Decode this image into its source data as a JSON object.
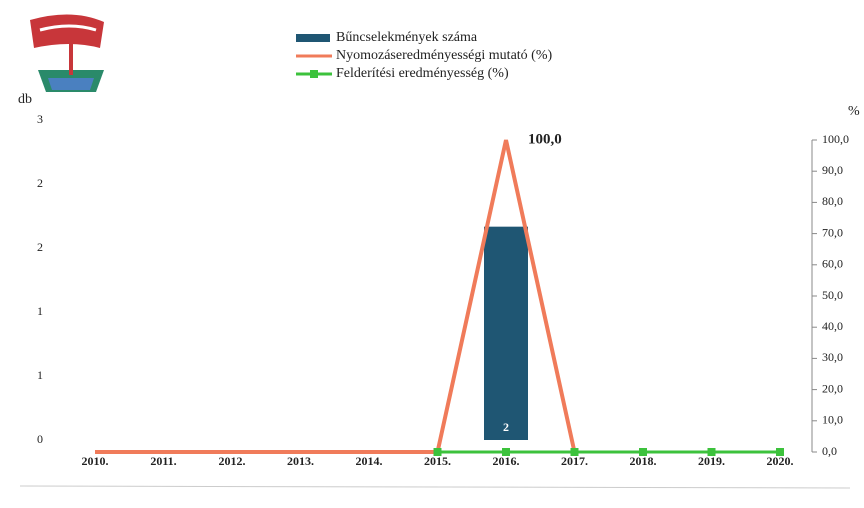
{
  "chart_data": {
    "type": "bar_line",
    "categories": [
      "2010.",
      "2011.",
      "2012.",
      "2013.",
      "2014.",
      "2015.",
      "2016.",
      "2017.",
      "2018.",
      "2019.",
      "2020."
    ],
    "ylabel": "db",
    "y2label": "%",
    "ylim": [
      0,
      3
    ],
    "yticks": [
      0,
      {
        "value": 0.6,
        "label": "1"
      },
      {
        "value": 1.2,
        "label": "1"
      },
      {
        "value": 1.8,
        "label": "2"
      },
      {
        "value": 2.4,
        "label": "2"
      },
      3
    ],
    "y2lim": [
      0,
      100
    ],
    "y2ticks": [
      {
        "value": 0,
        "label": "0,0"
      },
      {
        "value": 10,
        "label": "10,0"
      },
      {
        "value": 20,
        "label": "20,0"
      },
      {
        "value": 30,
        "label": "30,0"
      },
      {
        "value": 40,
        "label": "40,0"
      },
      {
        "value": 50,
        "label": "50,0"
      },
      {
        "value": 60,
        "label": "60,0"
      },
      {
        "value": 70,
        "label": "70,0"
      },
      {
        "value": 80,
        "label": "80,0"
      },
      {
        "value": 90,
        "label": "90,0"
      },
      {
        "value": 100,
        "label": "100,0"
      }
    ],
    "series": [
      {
        "name": "Bűncselekmények száma",
        "kind": "bar",
        "color": "#1f5673",
        "values": [
          null,
          null,
          null,
          null,
          null,
          null,
          2,
          null,
          null,
          null,
          null
        ],
        "value_labels": [
          null,
          null,
          null,
          null,
          null,
          null,
          "2",
          null,
          null,
          null,
          null
        ]
      },
      {
        "name": "Nyomozáseredményességi mutató (%)",
        "kind": "line",
        "axis": "y2",
        "color": "#f07b5a",
        "values": [
          0,
          0,
          0,
          0,
          0,
          0,
          100,
          0,
          null,
          null,
          null
        ],
        "value_labels": [
          null,
          null,
          null,
          null,
          null,
          null,
          "100,0",
          null,
          null,
          null,
          null
        ]
      },
      {
        "name": "Felderítési eredményesség (%)",
        "kind": "line",
        "axis": "y2",
        "color": "#3cc23c",
        "values": [
          null,
          null,
          null,
          null,
          null,
          0,
          0,
          0,
          0,
          0,
          0
        ]
      }
    ]
  }
}
